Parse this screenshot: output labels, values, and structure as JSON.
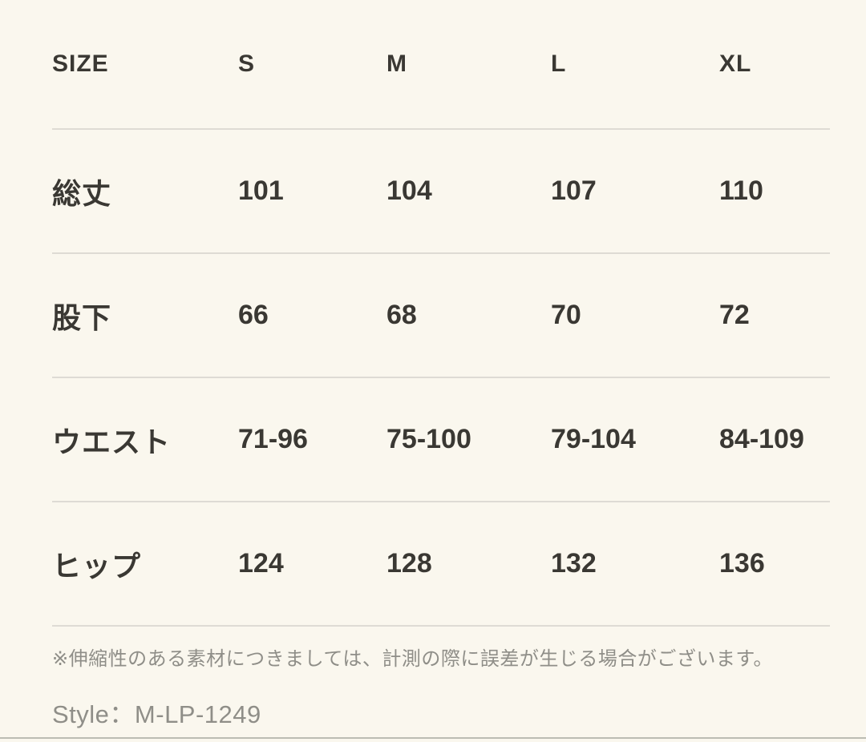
{
  "table": {
    "header": {
      "label": "SIZE",
      "sizes": [
        "S",
        "M",
        "L",
        "XL"
      ]
    },
    "rows": [
      {
        "label": "総丈",
        "values": [
          "101",
          "104",
          "107",
          "110"
        ]
      },
      {
        "label": "股下",
        "values": [
          "66",
          "68",
          "70",
          "72"
        ]
      },
      {
        "label": "ウエスト",
        "values": [
          "71-96",
          "75-100",
          "79-104",
          "84-109"
        ]
      },
      {
        "label": "ヒップ",
        "values": [
          "124",
          "128",
          "132",
          "136"
        ]
      }
    ]
  },
  "footer": {
    "note": "※伸縮性のある素材につきましては、計測の際に誤差が生じる場合がございます。",
    "style_code": "Style：M-LP-1249"
  },
  "colors": {
    "background": "#faf7ee",
    "text": "#3a3833",
    "divider": "#dedbd4",
    "muted_text": "#8f8e88",
    "bottom_edge": "#bcbcb3"
  }
}
